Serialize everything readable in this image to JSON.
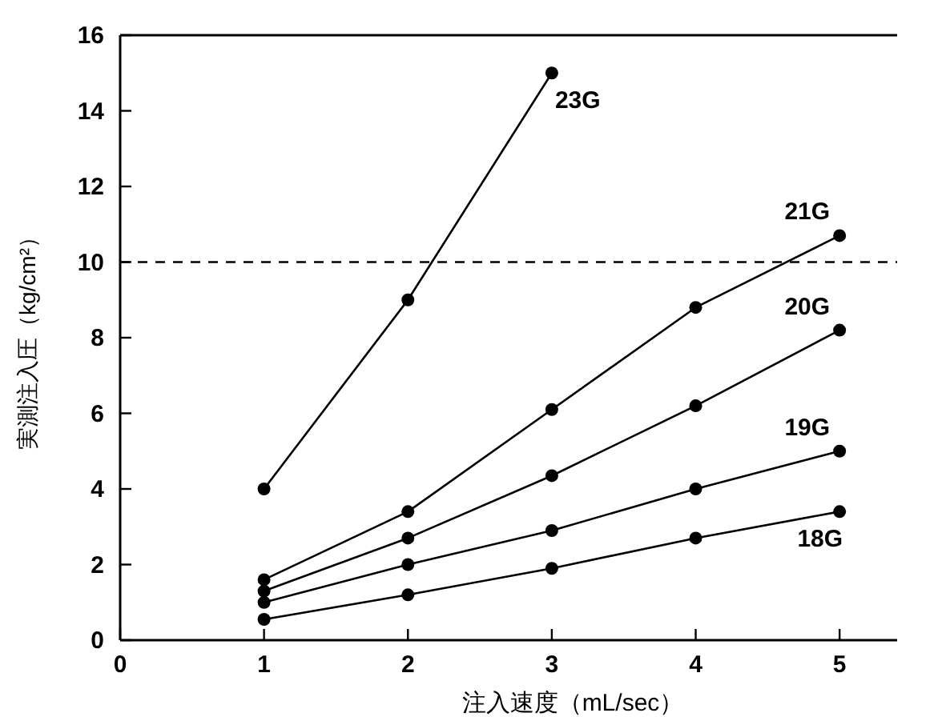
{
  "chart_data": {
    "type": "line",
    "xlabel": "注入速度（mL/sec）",
    "ylabel": "実測注入圧（kg/cm²）",
    "x": [
      1,
      2,
      3,
      4,
      5
    ],
    "xlim": [
      0,
      5.4
    ],
    "xticks": [
      0,
      1,
      2,
      3,
      4,
      5
    ],
    "ylim": [
      0,
      16
    ],
    "yticks": [
      0,
      2,
      4,
      6,
      8,
      10,
      12,
      14,
      16
    ],
    "marker": "circle",
    "line_style": "solid",
    "grid": false,
    "series": [
      {
        "name": "23G",
        "color": "#000000",
        "x": [
          1,
          2,
          3
        ],
        "values": [
          4.0,
          9.0,
          15.0
        ]
      },
      {
        "name": "21G",
        "color": "#000000",
        "values": [
          1.6,
          3.4,
          6.1,
          8.8,
          10.7
        ]
      },
      {
        "name": "20G",
        "color": "#000000",
        "values": [
          1.3,
          2.7,
          4.35,
          6.2,
          8.2
        ]
      },
      {
        "name": "19G",
        "color": "#000000",
        "values": [
          1.0,
          2.0,
          2.9,
          4.0,
          5.0
        ]
      },
      {
        "name": "18G",
        "color": "#000000",
        "values": [
          0.55,
          1.2,
          1.9,
          2.7,
          3.4
        ]
      }
    ],
    "ref_lines": [
      {
        "axis": "y",
        "value": 10,
        "line_style": "dashed",
        "color": "#000000"
      }
    ]
  }
}
